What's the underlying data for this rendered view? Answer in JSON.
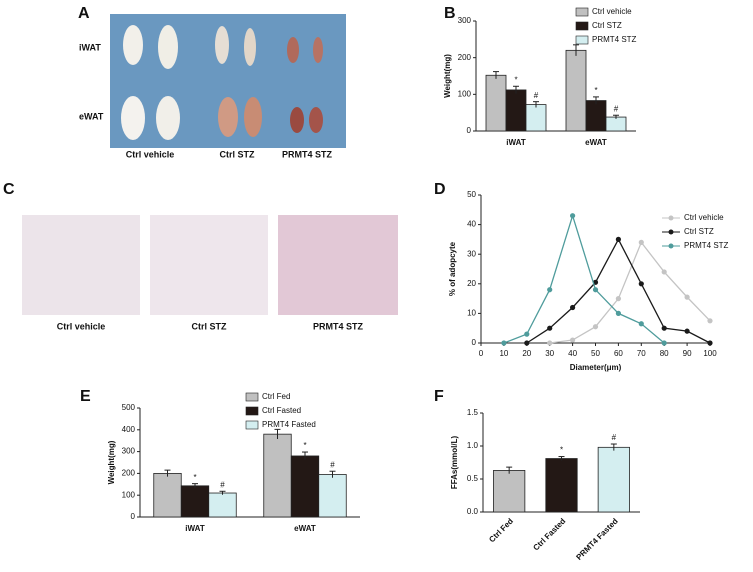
{
  "images": {
    "A": {
      "panel": "A",
      "rows": [
        "iWAT",
        "eWAT"
      ],
      "captions": [
        "Ctrl vehicle",
        "Ctrl STZ",
        "PRMT4 STZ"
      ]
    },
    "C": {
      "panel": "C",
      "captions": [
        "Ctrl vehicle",
        "Ctrl STZ",
        "PRMT4 STZ"
      ]
    }
  },
  "chart_data": [
    {
      "panel": "B",
      "type": "bar",
      "ylabel": "Weight(mg)",
      "categories": [
        "iWAT",
        "eWAT"
      ],
      "series": [
        {
          "name": "Ctrl vehicle",
          "color": "#c0c0c0",
          "values": [
            152,
            220
          ],
          "errors": [
            10,
            15
          ]
        },
        {
          "name": "Ctrl STZ",
          "color": "#231815",
          "values": [
            112,
            83
          ],
          "errors": [
            10,
            10
          ],
          "marks": [
            "*",
            "*"
          ]
        },
        {
          "name": "PRMT4 STZ",
          "color": "#d4eef0",
          "values": [
            72,
            38
          ],
          "errors": [
            8,
            5
          ],
          "marks": [
            "#",
            "#"
          ]
        }
      ],
      "ylim": [
        0,
        300
      ],
      "yticks": [
        0,
        100,
        200,
        300
      ]
    },
    {
      "panel": "D",
      "type": "line",
      "ylabel": "% of adopcyte",
      "xlabel": "Diameter(μm)",
      "x": [
        10,
        20,
        30,
        40,
        50,
        60,
        70,
        80,
        90,
        100
      ],
      "series": [
        {
          "name": "Ctrl vehicle",
          "color": "#c4c4c4",
          "values": [
            null,
            null,
            0,
            1,
            5.5,
            15,
            34,
            24,
            15.5,
            7.5
          ]
        },
        {
          "name": "Ctrl STZ",
          "color": "#1a1a1a",
          "values": [
            null,
            0,
            5,
            12,
            20.5,
            35,
            20,
            5,
            4,
            0
          ]
        },
        {
          "name": "PRMT4 STZ",
          "color": "#4f9c9c",
          "values": [
            0,
            3,
            18,
            43,
            18,
            10,
            6.5,
            0,
            null,
            null
          ]
        }
      ],
      "xlim": [
        0,
        100
      ],
      "xticks": [
        0,
        10,
        20,
        30,
        40,
        50,
        60,
        70,
        80,
        90,
        100
      ],
      "ylim": [
        0,
        50
      ],
      "yticks": [
        0,
        10,
        20,
        30,
        40,
        50
      ]
    },
    {
      "panel": "E",
      "type": "bar",
      "ylabel": "Weight(mg)",
      "categories": [
        "iWAT",
        "eWAT"
      ],
      "series": [
        {
          "name": "Ctrl Fed",
          "color": "#c0c0c0",
          "values": [
            200,
            380
          ],
          "errors": [
            15,
            22
          ]
        },
        {
          "name": "Ctrl Fasted",
          "color": "#231815",
          "values": [
            143,
            280
          ],
          "errors": [
            10,
            18
          ],
          "marks": [
            "*",
            "*"
          ]
        },
        {
          "name": "PRMT4  Fasted",
          "color": "#d4eef0",
          "values": [
            110,
            195
          ],
          "errors": [
            8,
            15
          ],
          "marks": [
            "#",
            "#"
          ]
        }
      ],
      "ylim": [
        0,
        500
      ],
      "yticks": [
        0,
        100,
        200,
        300,
        400,
        500
      ]
    },
    {
      "panel": "F",
      "type": "bar",
      "ylabel": "FFAs(mmol/L)",
      "categories": [
        "Ctrl Fed",
        "Ctrl Fasted",
        "PRMT4 Fasted"
      ],
      "values": [
        0.63,
        0.81,
        0.98
      ],
      "errors": [
        0.05,
        0.03,
        0.05
      ],
      "colors": [
        "#c0c0c0",
        "#231815",
        "#d4eef0"
      ],
      "marks": [
        null,
        "*",
        "#"
      ],
      "ylim": [
        0,
        1.5
      ],
      "yticks": [
        {
          "value": 0,
          "label": "0.0"
        },
        {
          "value": 0.5,
          "label": "0.5"
        },
        {
          "value": 1,
          "label": "1.0"
        },
        {
          "value": 1.5,
          "label": "1.5"
        }
      ]
    }
  ]
}
